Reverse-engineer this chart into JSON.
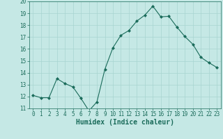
{
  "x": [
    0,
    1,
    2,
    3,
    4,
    5,
    6,
    7,
    8,
    9,
    10,
    11,
    12,
    13,
    14,
    15,
    16,
    17,
    18,
    19,
    20,
    21,
    22,
    23
  ],
  "y": [
    12.1,
    11.9,
    11.9,
    13.5,
    13.1,
    12.8,
    11.85,
    10.8,
    11.55,
    14.3,
    16.1,
    17.15,
    17.55,
    18.35,
    18.85,
    19.6,
    18.7,
    18.75,
    17.85,
    17.05,
    16.4,
    15.3,
    14.85,
    14.45
  ],
  "line_color": "#1a6b5a",
  "marker": "D",
  "marker_size": 2.0,
  "bg_color": "#c5e8e5",
  "grid_color": "#a8d4d0",
  "xlabel": "Humidex (Indice chaleur)",
  "ylim": [
    11,
    20
  ],
  "xlim": [
    -0.5,
    23.5
  ],
  "yticks": [
    11,
    12,
    13,
    14,
    15,
    16,
    17,
    18,
    19,
    20
  ],
  "xticks": [
    0,
    1,
    2,
    3,
    4,
    5,
    6,
    7,
    8,
    9,
    10,
    11,
    12,
    13,
    14,
    15,
    16,
    17,
    18,
    19,
    20,
    21,
    22,
    23
  ],
  "tick_fontsize": 5.5,
  "xlabel_fontsize": 7.0,
  "linewidth": 0.8
}
